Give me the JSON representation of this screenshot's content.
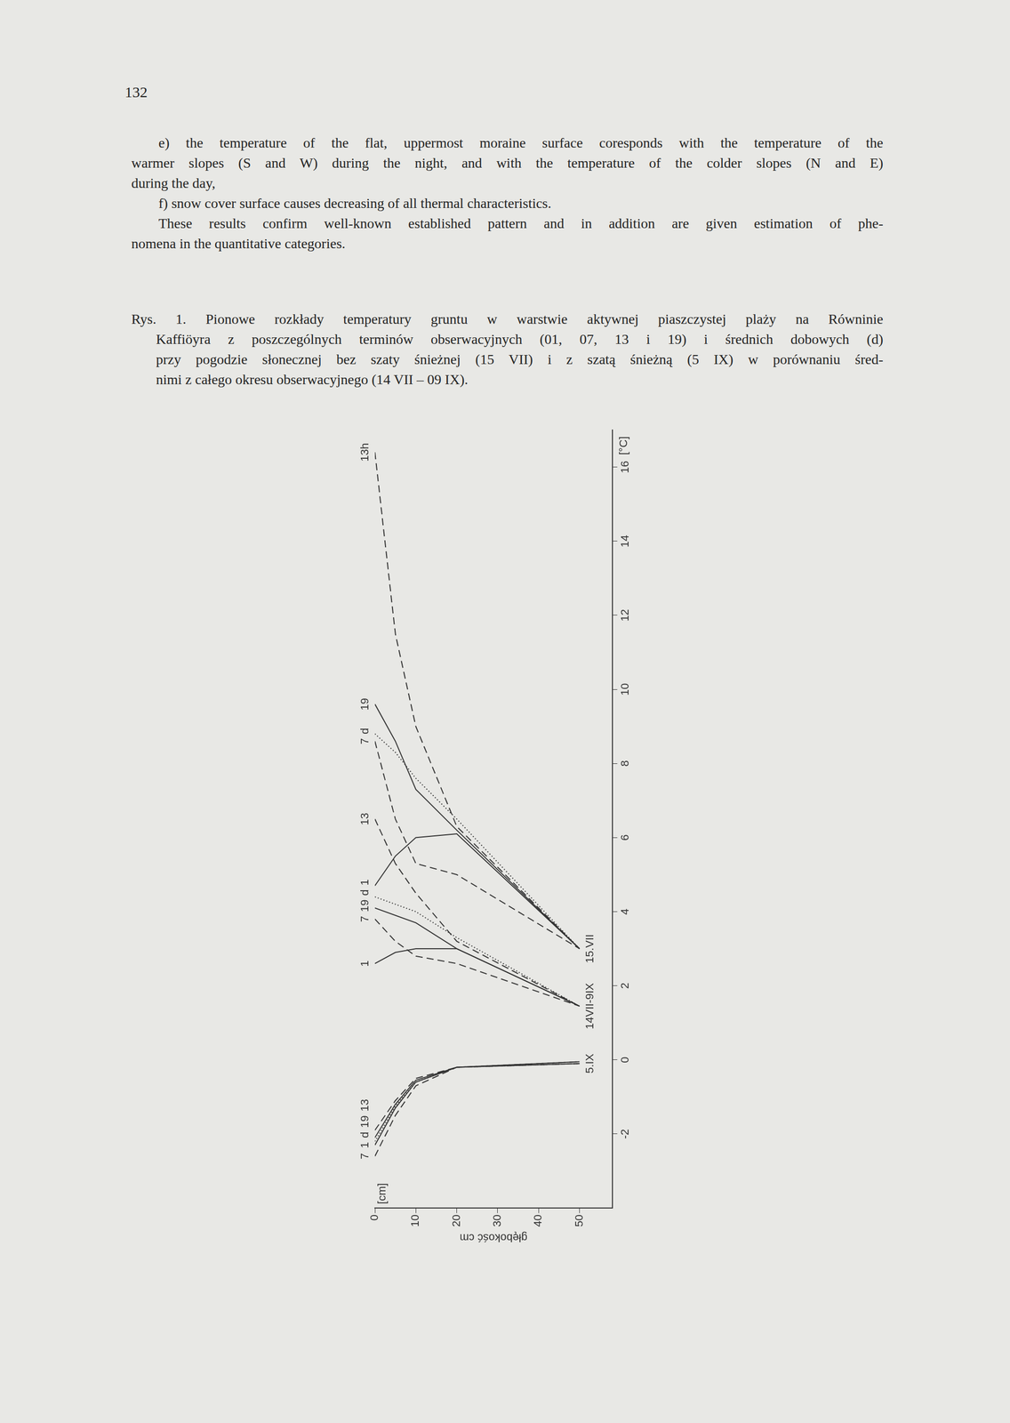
{
  "page_number": "132",
  "paragraphs": [
    [
      "e) the temperature of the flat, uppermost moraine surface coresponds with the temperature of the",
      "warmer slopes (S and W) during the night, and with the temperature of the colder slopes (N and E)",
      "during the day,"
    ],
    [
      "f) snow cover surface causes decreasing of all thermal characteristics."
    ],
    [
      "These results confirm well-known established pattern and in addition are given estimation of phe-",
      "nomena in the quantitative categories."
    ]
  ],
  "caption": [
    "Rys. 1. Pionowe rozkłady temperatury gruntu w warstwie aktywnej piaszczystej plaży na Równinie",
    "Kaffiöyra z poszczególnych terminów obserwacyjnych (01, 07, 13 i 19) i średnich dobowych (d)",
    "przy pogodzie słonecznej bez szaty śnieżnej (15 VII) i z szatą śnieżną (5 IX) w porównaniu śred-",
    "nimi z całego okresu obserwacyjnego (14 VII – 09 IX)."
  ],
  "chart_data": {
    "type": "line",
    "y_label": "głębokość cm",
    "x_unit": "[°C]",
    "y_unit": "[cm]",
    "xlim": [
      -4,
      17
    ],
    "xticks": [
      -2,
      0,
      2,
      4,
      6,
      8,
      10,
      12,
      14,
      16
    ],
    "ylim": [
      0,
      58
    ],
    "yticks": [
      0,
      10,
      20,
      30,
      40,
      50
    ],
    "grid": false,
    "color": "#333333",
    "depths": [
      0,
      5,
      10,
      20,
      50
    ],
    "groups": [
      {
        "name": "5.IX",
        "series": [
          {
            "name": "1",
            "line_style": "solid",
            "values": [
              -2.3,
              -1.3,
              -0.6,
              -0.2,
              -0.1
            ]
          },
          {
            "name": "7",
            "line_style": "dashed",
            "values": [
              -2.6,
              -1.5,
              -0.7,
              -0.2,
              -0.1
            ]
          },
          {
            "name": "13",
            "line_style": "dashed",
            "values": [
              -1.9,
              -1.1,
              -0.5,
              -0.2,
              -0.05
            ]
          },
          {
            "name": "19",
            "line_style": "solid",
            "values": [
              -2.1,
              -1.2,
              -0.55,
              -0.2,
              -0.05
            ]
          },
          {
            "name": "d",
            "line_style": "dotted",
            "values": [
              -2.2,
              -1.25,
              -0.6,
              -0.2,
              -0.1
            ]
          }
        ]
      },
      {
        "name": "14VII-9IX",
        "series": [
          {
            "name": "1",
            "line_style": "solid",
            "values": [
              2.6,
              2.9,
              3.0,
              3.0,
              1.45
            ]
          },
          {
            "name": "7",
            "line_style": "dashed",
            "values": [
              3.8,
              3.2,
              2.8,
              2.6,
              1.45
            ]
          },
          {
            "name": "13",
            "line_style": "dashed",
            "values": [
              6.5,
              5.3,
              4.5,
              3.2,
              1.45
            ]
          },
          {
            "name": "19",
            "line_style": "solid",
            "values": [
              4.1,
              3.9,
              3.7,
              3.0,
              1.45
            ]
          },
          {
            "name": "d",
            "line_style": "dotted",
            "values": [
              4.4,
              4.2,
              4.0,
              3.3,
              1.45
            ]
          }
        ]
      },
      {
        "name": "15.VII",
        "series": [
          {
            "name": "1",
            "line_style": "solid",
            "values": [
              4.7,
              5.5,
              6.0,
              6.1,
              3.0
            ]
          },
          {
            "name": "7",
            "line_style": "dashed",
            "values": [
              8.6,
              6.5,
              5.3,
              5.0,
              3.0
            ]
          },
          {
            "name": "13h",
            "line_style": "dashed",
            "values": [
              16.4,
              11.5,
              9.0,
              6.3,
              3.0
            ]
          },
          {
            "name": "19",
            "line_style": "solid",
            "values": [
              9.6,
              8.6,
              7.3,
              6.2,
              3.0
            ]
          },
          {
            "name": "d",
            "line_style": "dotted",
            "values": [
              8.8,
              8.3,
              7.6,
              6.5,
              3.0
            ]
          }
        ]
      }
    ]
  }
}
